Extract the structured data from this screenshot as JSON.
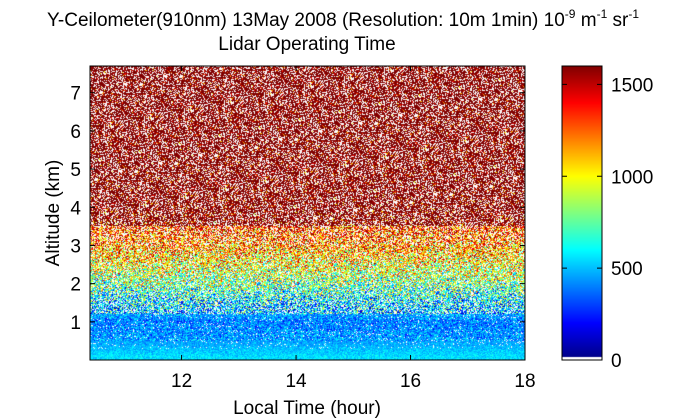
{
  "chart_data": {
    "type": "heatmap",
    "title_line1_parts": {
      "prefix": "Y-Ceilometer(910nm) 13May 2008 (Resolution: 10m 1min) 10",
      "exp1": "-9",
      "unit1": " m",
      "exp2": "-1",
      "unit2": " sr",
      "exp3": "-1"
    },
    "title_line2": "Lidar Operating Time",
    "xlabel": "Local Time (hour)",
    "ylabel": "Altitude (km)",
    "xlim": [
      10.4,
      18
    ],
    "ylim": [
      0,
      7.7
    ],
    "xticks": [
      "12",
      "14",
      "16",
      "18"
    ],
    "yticks": [
      "1",
      "2",
      "3",
      "4",
      "5",
      "6",
      "7"
    ],
    "colorbar": {
      "range": [
        0,
        1600
      ],
      "ticks": [
        "0",
        "500",
        "1000",
        "1500"
      ],
      "colormap": "jet",
      "zero_color": "#ffffff"
    },
    "profile": [
      {
        "altitude_km": 0.1,
        "typical_value": 550
      },
      {
        "altitude_km": 0.5,
        "typical_value": 450
      },
      {
        "altitude_km": 1.0,
        "typical_value": 400
      },
      {
        "altitude_km": 1.5,
        "typical_value": 550
      },
      {
        "altitude_km": 2.0,
        "typical_value": 800
      },
      {
        "altitude_km": 3.0,
        "typical_value": 1200
      },
      {
        "altitude_km": 4.0,
        "typical_value": 1500
      },
      {
        "altitude_km": 7.7,
        "typical_value": 1600
      }
    ]
  }
}
